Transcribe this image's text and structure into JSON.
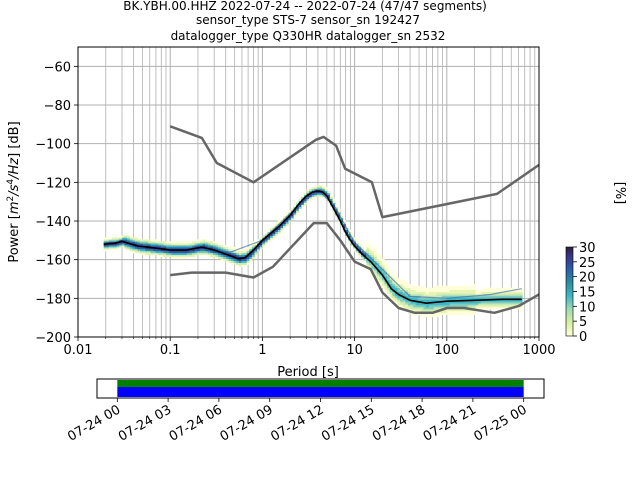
{
  "header": {
    "line1": "BK.YBH.00.HHZ   2022-07-24 -- 2022-07-24  (47/47 segments)",
    "line2": "sensor_type STS-7 sensor_sn 192427",
    "line3": "datalogger_type Q330HR datalogger_sn 2532"
  },
  "chart_data": [
    {
      "type": "heatmap",
      "xlabel": "Period [s]",
      "ylabel_parts": [
        "Power [",
        "m",
        "2",
        "/s",
        "4",
        "/Hz",
        "] [dB]"
      ],
      "xscale": "log",
      "xlim": [
        0.01,
        1000
      ],
      "ylim": [
        -200,
        -50
      ],
      "x_ticks": [
        {
          "value": 0.01,
          "label": "0.01"
        },
        {
          "value": 0.1,
          "label": "0.1"
        },
        {
          "value": 1,
          "label": "1"
        },
        {
          "value": 10,
          "label": "10"
        },
        {
          "value": 100,
          "label": "100"
        },
        {
          "value": 1000,
          "label": "1000"
        }
      ],
      "y_ticks": [
        {
          "value": -60,
          "label": "−60"
        },
        {
          "value": -80,
          "label": "−80"
        },
        {
          "value": -100,
          "label": "−100"
        },
        {
          "value": -120,
          "label": "−120"
        },
        {
          "value": -140,
          "label": "−140"
        },
        {
          "value": -160,
          "label": "−160"
        },
        {
          "value": -180,
          "label": "−180"
        },
        {
          "value": -200,
          "label": "−200"
        }
      ],
      "grid": true,
      "colorbar": {
        "label": "[%]",
        "range": [
          0,
          30
        ],
        "ticks": [
          {
            "value": 0,
            "label": "0"
          },
          {
            "value": 5,
            "label": "5"
          },
          {
            "value": 10,
            "label": "10"
          },
          {
            "value": 15,
            "label": "15"
          },
          {
            "value": 20,
            "label": "20"
          },
          {
            "value": 25,
            "label": "25"
          },
          {
            "value": 30,
            "label": "30"
          }
        ]
      },
      "series": [
        {
          "role": "high-noise-model",
          "color": "#666666",
          "points": [
            [
              0.1,
              -91
            ],
            [
              0.22,
              -97
            ],
            [
              0.32,
              -110
            ],
            [
              0.8,
              -120
            ],
            [
              3.8,
              -98
            ],
            [
              4.6,
              -96.5
            ],
            [
              6.3,
              -101
            ],
            [
              7.9,
              -113
            ],
            [
              15.4,
              -120
            ],
            [
              20,
              -138
            ],
            [
              350,
              -126
            ],
            [
              1000,
              -111
            ]
          ]
        },
        {
          "role": "low-noise-model",
          "color": "#666666",
          "points": [
            [
              0.1,
              -168
            ],
            [
              0.17,
              -166.7
            ],
            [
              0.4,
              -166.7
            ],
            [
              0.8,
              -169.2
            ],
            [
              1.3,
              -163.7
            ],
            [
              3.6,
              -141.1
            ],
            [
              5,
              -141.1
            ],
            [
              7,
              -150
            ],
            [
              10,
              -161
            ],
            [
              15,
              -165
            ],
            [
              20,
              -177
            ],
            [
              30,
              -185
            ],
            [
              45,
              -187.5
            ],
            [
              70,
              -187.5
            ],
            [
              101,
              -185
            ],
            [
              154,
              -185
            ],
            [
              328,
              -187.5
            ],
            [
              600,
              -184
            ],
            [
              1000,
              -178
            ]
          ]
        },
        {
          "role": "mode",
          "color": "#000000",
          "points": [
            [
              0.019,
              -152
            ],
            [
              0.025,
              -151.5
            ],
            [
              0.03,
              -150.5
            ],
            [
              0.035,
              -151.5
            ],
            [
              0.045,
              -153
            ],
            [
              0.07,
              -154
            ],
            [
              0.1,
              -155
            ],
            [
              0.15,
              -155
            ],
            [
              0.22,
              -153.5
            ],
            [
              0.3,
              -155
            ],
            [
              0.45,
              -158
            ],
            [
              0.55,
              -159.5
            ],
            [
              0.65,
              -159
            ],
            [
              0.8,
              -155
            ],
            [
              1,
              -150
            ],
            [
              1.5,
              -143
            ],
            [
              2,
              -137
            ],
            [
              2.5,
              -131
            ],
            [
              3,
              -127
            ],
            [
              3.5,
              -125
            ],
            [
              4,
              -124.5
            ],
            [
              4.5,
              -125
            ],
            [
              5,
              -127
            ],
            [
              6,
              -134
            ],
            [
              7,
              -140
            ],
            [
              8,
              -146
            ],
            [
              9,
              -150
            ],
            [
              10,
              -153
            ],
            [
              12,
              -157
            ],
            [
              15,
              -161
            ],
            [
              20,
              -168
            ],
            [
              25,
              -175
            ],
            [
              30,
              -178
            ],
            [
              40,
              -181
            ],
            [
              60,
              -182.5
            ],
            [
              100,
              -181.5
            ],
            [
              200,
              -181
            ],
            [
              400,
              -180.5
            ],
            [
              600,
              -180.5
            ],
            [
              650,
              -180.5
            ]
          ]
        },
        {
          "role": "max-envelope",
          "color": "#2b5fb3",
          "points": [
            [
              0.4,
              -157
            ],
            [
              1,
              -150
            ],
            [
              2,
              -136
            ],
            [
              4,
              -124
            ],
            [
              6,
              -132
            ],
            [
              10,
              -151
            ],
            [
              20,
              -165
            ],
            [
              40,
              -179
            ],
            [
              100,
              -180
            ],
            [
              300,
              -178
            ],
            [
              500,
              -176
            ],
            [
              650,
              -175
            ]
          ]
        }
      ]
    },
    {
      "type": "timeline",
      "x_ticks": [
        {
          "value": 0,
          "label": "07-24 00"
        },
        {
          "value": 3,
          "label": "07-24 03"
        },
        {
          "value": 6,
          "label": "07-24 06"
        },
        {
          "value": 9,
          "label": "07-24 09"
        },
        {
          "value": 12,
          "label": "07-24 12"
        },
        {
          "value": 15,
          "label": "07-24 15"
        },
        {
          "value": 18,
          "label": "07-24 18"
        },
        {
          "value": 21,
          "label": "07-24 21"
        },
        {
          "value": 24,
          "label": "07-25 00"
        }
      ],
      "xlim_hours": [
        -1.2,
        25.2
      ],
      "bars": [
        {
          "role": "data",
          "color": "#008000",
          "start_hours": 0,
          "end_hours": 24
        },
        {
          "role": "psd",
          "color": "#0000ff",
          "start_hours": 0,
          "end_hours": 24
        }
      ]
    }
  ],
  "colors": {
    "model_lines": "#666666",
    "mode_line": "#000000",
    "grid": "#b0b0b0",
    "timeline_green": "#008000",
    "timeline_blue": "#0000ff"
  }
}
